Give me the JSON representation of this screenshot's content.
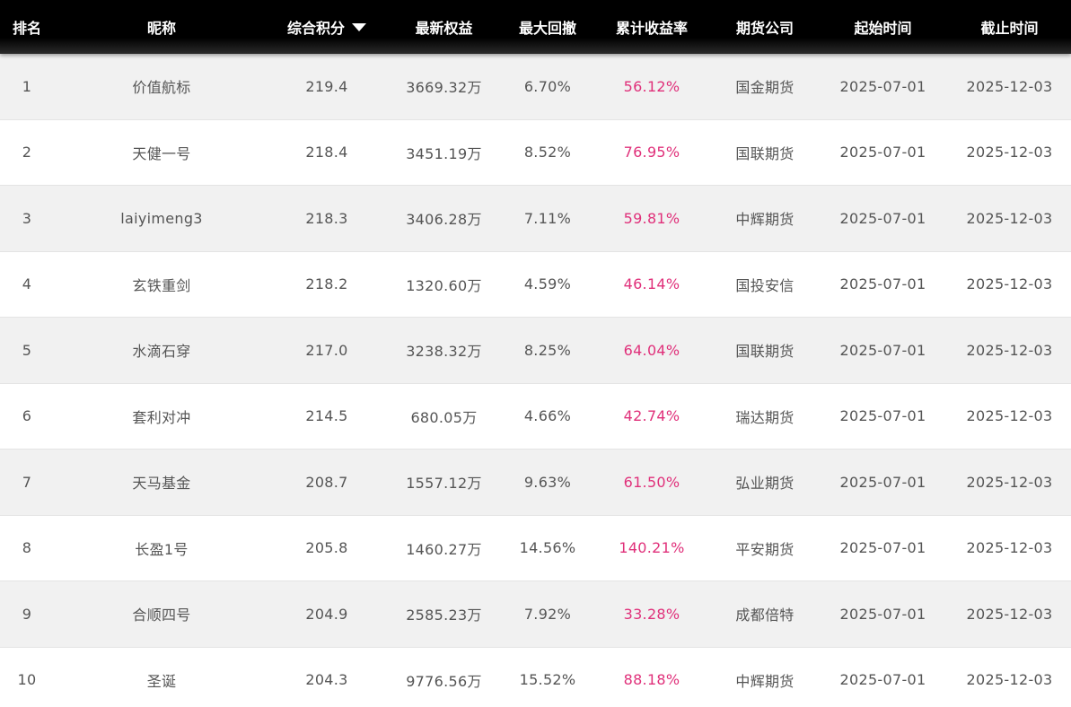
{
  "colors": {
    "header_bg": "#000000",
    "header_text": "#ffffff",
    "row_alt_bg": "#f1f1f1",
    "row_bg": "#ffffff",
    "text": "#555555",
    "rate": "#e0307a"
  },
  "header": {
    "rank": "排名",
    "nickname": "昵称",
    "score": "综合积分",
    "score_sort_icon": "sort-desc-icon",
    "equity": "最新权益",
    "drawdown": "最大回撤",
    "return_rate": "累计收益率",
    "broker": "期货公司",
    "start": "起始时间",
    "end": "截止时间"
  },
  "rows": [
    {
      "rank": "1",
      "nickname": "价值航标",
      "score": "219.4",
      "equity": "3669.32万",
      "drawdown": "6.70%",
      "return_rate": "56.12%",
      "broker": "国金期货",
      "start": "2025-07-01",
      "end": "2025-12-03"
    },
    {
      "rank": "2",
      "nickname": "天健一号",
      "score": "218.4",
      "equity": "3451.19万",
      "drawdown": "8.52%",
      "return_rate": "76.95%",
      "broker": "国联期货",
      "start": "2025-07-01",
      "end": "2025-12-03"
    },
    {
      "rank": "3",
      "nickname": "laiyimeng3",
      "score": "218.3",
      "equity": "3406.28万",
      "drawdown": "7.11%",
      "return_rate": "59.81%",
      "broker": "中辉期货",
      "start": "2025-07-01",
      "end": "2025-12-03"
    },
    {
      "rank": "4",
      "nickname": "玄铁重剑",
      "score": "218.2",
      "equity": "1320.60万",
      "drawdown": "4.59%",
      "return_rate": "46.14%",
      "broker": "国投安信",
      "start": "2025-07-01",
      "end": "2025-12-03"
    },
    {
      "rank": "5",
      "nickname": "水滴石穿",
      "score": "217.0",
      "equity": "3238.32万",
      "drawdown": "8.25%",
      "return_rate": "64.04%",
      "broker": "国联期货",
      "start": "2025-07-01",
      "end": "2025-12-03"
    },
    {
      "rank": "6",
      "nickname": "套利对冲",
      "score": "214.5",
      "equity": "680.05万",
      "drawdown": "4.66%",
      "return_rate": "42.74%",
      "broker": "瑞达期货",
      "start": "2025-07-01",
      "end": "2025-12-03"
    },
    {
      "rank": "7",
      "nickname": "天马基金",
      "score": "208.7",
      "equity": "1557.12万",
      "drawdown": "9.63%",
      "return_rate": "61.50%",
      "broker": "弘业期货",
      "start": "2025-07-01",
      "end": "2025-12-03"
    },
    {
      "rank": "8",
      "nickname": "长盈1号",
      "score": "205.8",
      "equity": "1460.27万",
      "drawdown": "14.56%",
      "return_rate": "140.21%",
      "broker": "平安期货",
      "start": "2025-07-01",
      "end": "2025-12-03"
    },
    {
      "rank": "9",
      "nickname": "合顺四号",
      "score": "204.9",
      "equity": "2585.23万",
      "drawdown": "7.92%",
      "return_rate": "33.28%",
      "broker": "成都倍特",
      "start": "2025-07-01",
      "end": "2025-12-03"
    },
    {
      "rank": "10",
      "nickname": "圣诞",
      "score": "204.3",
      "equity": "9776.56万",
      "drawdown": "15.52%",
      "return_rate": "88.18%",
      "broker": "中辉期货",
      "start": "2025-07-01",
      "end": "2025-12-03"
    }
  ]
}
